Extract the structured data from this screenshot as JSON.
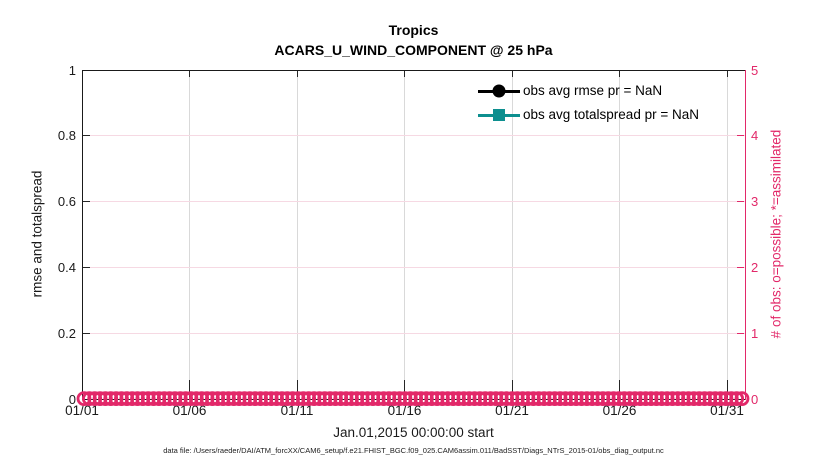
{
  "figure": {
    "title_line1": "Tropics",
    "title_line2": "ACARS_U_WIND_COMPONENT @ 25 hPa",
    "footer": "data file: /Users/raeder/DAI/ATM_forcXX/CAM6_setup/f.e21.FHIST_BGC.f09_025.CAM6assim.011/BadSST/Diags_NTrS_2015-01/obs_diag_output.nc"
  },
  "axes": {
    "x": {
      "label": "Jan.01,2015 00:00:00 start",
      "ticks": [
        "01/01",
        "01/06",
        "01/11",
        "01/16",
        "01/21",
        "01/26",
        "01/31"
      ]
    },
    "left": {
      "label": "rmse and totalspread",
      "ticks": [
        "0",
        "0.2",
        "0.4",
        "0.6",
        "0.8",
        "1"
      ]
    },
    "right": {
      "label": "# of obs: o=possible; *=assimilated",
      "ticks": [
        "0",
        "1",
        "2",
        "3",
        "4",
        "5"
      ]
    }
  },
  "legend": {
    "items": [
      {
        "label": "obs avg rmse pr = NaN",
        "marker": "filled-circle",
        "color": "#000000"
      },
      {
        "label": "obs avg totalspread pr = NaN",
        "marker": "filled-square",
        "color": "#0d8f8f"
      }
    ]
  },
  "colors": {
    "accent_pink": "#e22869",
    "grid_pink": "#f6d9e3",
    "grid_gray": "#d9d9d9",
    "teal": "#0d8f8f",
    "axis_black": "#1a1a1a"
  },
  "chart_data": {
    "type": "line",
    "title": "Tropics",
    "subtitle": "ACARS_U_WIND_COMPONENT @ 25 hPa",
    "xlabel": "Jan.01,2015 00:00:00 start",
    "ylabel_left": "rmse and totalspread",
    "ylabel_right": "# of obs: o=possible; *=assimilated",
    "x_ticks": [
      "01/01",
      "01/06",
      "01/11",
      "01/16",
      "01/21",
      "01/26",
      "01/31"
    ],
    "x_range": "Jan 01 2015 to Jan 31 2015",
    "ylim_left": [
      0,
      1
    ],
    "ylim_right": [
      0,
      5
    ],
    "grid": true,
    "legend_position": "top-right-inside",
    "series": [
      {
        "name": "obs avg rmse",
        "annotation": "pr = NaN",
        "marker": "filled-circle",
        "color": "#000000",
        "axis": "left",
        "values": "all NaN - no line drawn"
      },
      {
        "name": "obs avg totalspread",
        "annotation": "pr = NaN",
        "marker": "filled-square",
        "color": "#0d8f8f",
        "axis": "left",
        "values": "all NaN - no line drawn"
      },
      {
        "name": "# of obs possible",
        "marker": "o",
        "color": "#e22869",
        "axis": "right",
        "constant_value": 0,
        "n_points": 124
      },
      {
        "name": "# of obs assimilated",
        "marker": "*",
        "color": "#e22869",
        "axis": "right",
        "constant_value": 0,
        "n_points": 124
      }
    ]
  }
}
